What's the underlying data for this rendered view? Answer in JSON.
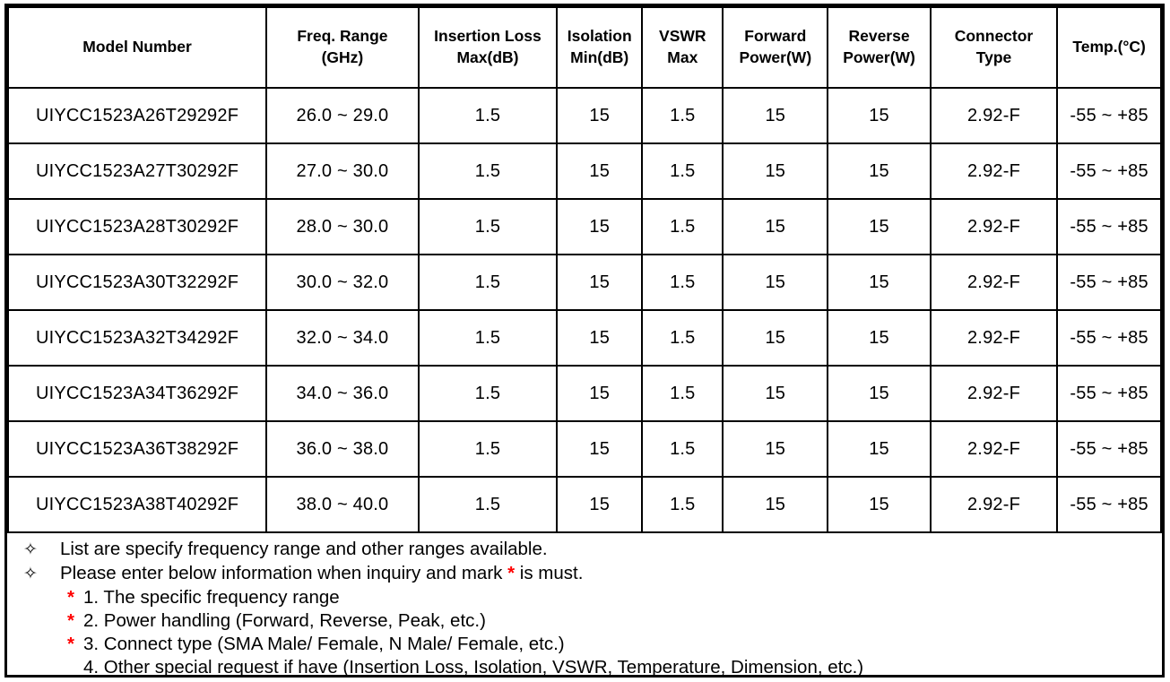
{
  "table": {
    "headers": [
      "Model Number",
      "Freq. Range\n(GHz)",
      "Insertion Loss\nMax(dB)",
      "Isolation\nMin(dB)",
      "VSWR\nMax",
      "Forward\nPower(W)",
      "Reverse\nPower(W)",
      "Connector\nType",
      "Temp.(°C)"
    ],
    "rows": [
      {
        "model": "UIYCC1523A26T29292F",
        "freq": "26.0 ~ 29.0",
        "il": "1.5",
        "iso": "15",
        "vswr": "1.5",
        "fwd": "15",
        "rev": "15",
        "conn": "2.92-F",
        "temp": "-55 ~ +85"
      },
      {
        "model": "UIYCC1523A27T30292F",
        "freq": "27.0 ~ 30.0",
        "il": "1.5",
        "iso": "15",
        "vswr": "1.5",
        "fwd": "15",
        "rev": "15",
        "conn": "2.92-F",
        "temp": "-55 ~ +85"
      },
      {
        "model": "UIYCC1523A28T30292F",
        "freq": "28.0 ~ 30.0",
        "il": "1.5",
        "iso": "15",
        "vswr": "1.5",
        "fwd": "15",
        "rev": "15",
        "conn": "2.92-F",
        "temp": "-55 ~ +85"
      },
      {
        "model": "UIYCC1523A30T32292F",
        "freq": "30.0 ~ 32.0",
        "il": "1.5",
        "iso": "15",
        "vswr": "1.5",
        "fwd": "15",
        "rev": "15",
        "conn": "2.92-F",
        "temp": "-55 ~ +85"
      },
      {
        "model": "UIYCC1523A32T34292F",
        "freq": "32.0 ~ 34.0",
        "il": "1.5",
        "iso": "15",
        "vswr": "1.5",
        "fwd": "15",
        "rev": "15",
        "conn": "2.92-F",
        "temp": "-55 ~ +85"
      },
      {
        "model": "UIYCC1523A34T36292F",
        "freq": "34.0 ~ 36.0",
        "il": "1.5",
        "iso": "15",
        "vswr": "1.5",
        "fwd": "15",
        "rev": "15",
        "conn": "2.92-F",
        "temp": "-55 ~ +85"
      },
      {
        "model": "UIYCC1523A36T38292F",
        "freq": "36.0 ~ 38.0",
        "il": "1.5",
        "iso": "15",
        "vswr": "1.5",
        "fwd": "15",
        "rev": "15",
        "conn": "2.92-F",
        "temp": "-55 ~ +85"
      },
      {
        "model": "UIYCC1523A38T40292F",
        "freq": "38.0 ~ 40.0",
        "il": "1.5",
        "iso": "15",
        "vswr": "1.5",
        "fwd": "15",
        "rev": "15",
        "conn": "2.92-F",
        "temp": "-55 ~ +85"
      }
    ]
  },
  "notes": {
    "bullet": "✧",
    "asterisk": "*",
    "asterisk_color": "#ff0000",
    "line1": "List are specify frequency range and other ranges available.",
    "line2_before": "Please enter below information when inquiry and mark ",
    "line2_after": " is must.",
    "numbered": [
      {
        "star": "*",
        "text": "1. The specific frequency range"
      },
      {
        "star": "*",
        "text": "2. Power handling (Forward, Reverse, Peak, etc.)"
      },
      {
        "star": "*",
        "text": "3. Connect type (SMA Male/ Female, N Male/ Female, etc.)"
      },
      {
        "star": "",
        "text": "4. Other special request if have (Insertion Loss, Isolation, VSWR, Temperature, Dimension, etc.)"
      }
    ]
  }
}
